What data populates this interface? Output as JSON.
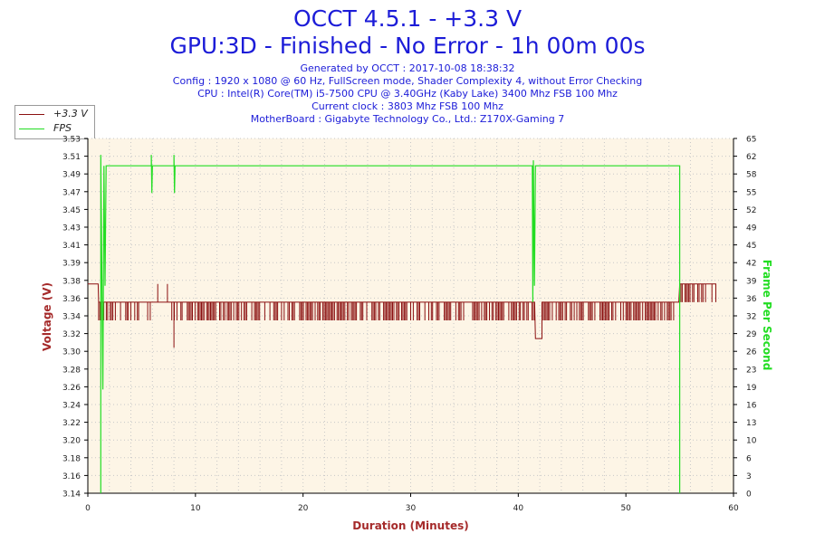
{
  "header": {
    "title_line1": "OCCT 4.5.1 - +3.3 V",
    "title_line2": "GPU:3D - Finished - No Error - 1h 00m 00s",
    "info": [
      "Generated by OCCT : 2017-10-08 18:38:32",
      "Config : 1920 x 1080 @ 60 Hz, FullScreen mode, Shader Complexity 4, without Error Checking",
      "CPU : Intel(R) Core(TM) i5-7500 CPU @ 3.40GHz (Kaby Lake) 3400 Mhz FSB 100 Mhz",
      "Current clock : 3803 Mhz FSB 100 Mhz",
      "MotherBoard : Gigabyte Technology Co., Ltd.: Z170X-Gaming 7"
    ]
  },
  "legend": [
    {
      "label": "+3.3 V",
      "color": "#8b1010"
    },
    {
      "label": "FPS",
      "color": "#22dd22"
    }
  ],
  "chart_data": {
    "type": "line",
    "xlabel": "Duration (Minutes)",
    "ylabel_left": "Voltage (V)",
    "ylabel_right": "Frame Per Second",
    "xlim": [
      0,
      60
    ],
    "ylim_left": [
      3.14,
      3.53
    ],
    "ylim_right": [
      0,
      65
    ],
    "x_ticks": [
      "0",
      "10",
      "20",
      "30",
      "40",
      "50",
      "60"
    ],
    "y_ticks_left": [
      "3.14",
      "3.16",
      "3.18",
      "3.20",
      "3.22",
      "3.24",
      "3.26",
      "3.28",
      "3.30",
      "3.32",
      "3.34",
      "3.36",
      "3.38",
      "3.39",
      "3.41",
      "3.43",
      "3.45",
      "3.47",
      "3.49",
      "3.51",
      "3.53"
    ],
    "y_ticks_right": [
      "0",
      "3",
      "6",
      "10",
      "13",
      "16",
      "19",
      "23",
      "26",
      "29",
      "32",
      "36",
      "39",
      "42",
      "45",
      "49",
      "52",
      "55",
      "58",
      "62",
      "65"
    ],
    "grid": true,
    "legend_position": "top-left",
    "colors": {
      "voltage": "#8b1010",
      "fps": "#22dd22",
      "axis_left": "#a52a2a",
      "axis_right": "#22dd22",
      "plot_bg": "#fdf5e6",
      "grid": "#c8c8c8"
    },
    "series": [
      {
        "name": "+3.3 V",
        "axis": "left",
        "base": 3.35,
        "low": 3.33,
        "segments": [
          {
            "x": [
              0.0,
              1.0
            ],
            "value": 3.37
          },
          {
            "x": [
              1.0,
              5.8
            ],
            "value": 3.35,
            "dips_to": 3.33
          },
          {
            "x": [
              5.8,
              7.8
            ],
            "value": 3.35
          },
          {
            "x": [
              7.8,
              41.6
            ],
            "value": 3.35,
            "dips_to": 3.33
          },
          {
            "x": [
              41.6,
              42.2
            ],
            "value": 3.31
          },
          {
            "x": [
              42.2,
              55.0
            ],
            "value": 3.35,
            "dips_to": 3.33
          },
          {
            "x": [
              55.0,
              58.4
            ],
            "value": 3.37,
            "dips_to": 3.35
          }
        ],
        "spikes": [
          {
            "x": 6.5,
            "value": 3.37
          },
          {
            "x": 7.4,
            "value": 3.37
          },
          {
            "x": 8.0,
            "value": 3.3
          }
        ]
      },
      {
        "name": "FPS",
        "axis": "right",
        "x": [
          1.2,
          1.2,
          1.4,
          1.5,
          1.6,
          1.7,
          1.8,
          2.0,
          5.9,
          5.9,
          5.95,
          6.0,
          8.0,
          8.0,
          8.05,
          8.1,
          41.3,
          41.35,
          41.4,
          41.5,
          41.6,
          55.0,
          55.0
        ],
        "y": [
          0,
          62,
          19,
          60,
          38,
          60,
          60,
          60,
          60,
          62,
          55,
          60,
          60,
          62,
          55,
          60,
          60,
          35,
          61,
          38,
          60,
          60,
          0
        ]
      }
    ]
  }
}
